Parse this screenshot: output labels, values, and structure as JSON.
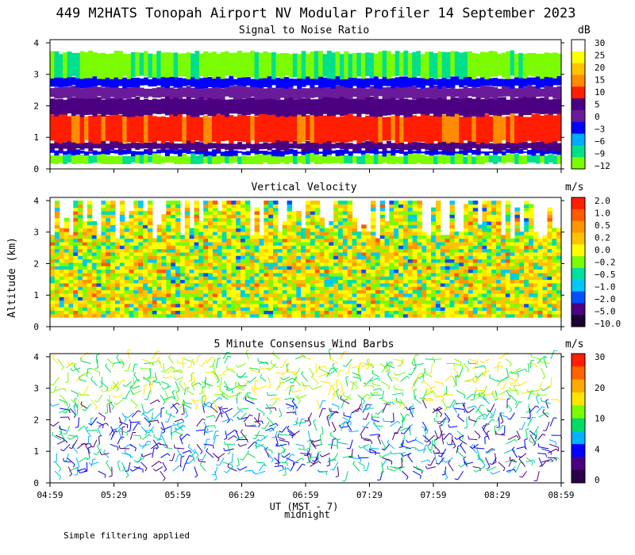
{
  "title": "449 M2HATS Tonopah Airport NV Modular Profiler 14 September 2023",
  "ylabel": "Altitude (km)",
  "xlabel": "UT (MST - 7)",
  "midnight_label": "midnight",
  "footnote": "Simple filtering applied",
  "colors": {
    "background": "#ffffff",
    "axis": "#000000"
  },
  "chart_data": [
    {
      "type": "heatmap",
      "title": "Signal to Noise Ratio",
      "xlabel": "UT (MST - 7)",
      "ylabel": "Altitude (km)",
      "x_ticks": [
        "04:59",
        "05:29",
        "05:59",
        "06:29",
        "06:59",
        "07:29",
        "07:59",
        "08:29",
        "08:59"
      ],
      "y_ticks": [
        "0",
        "1",
        "2",
        "3",
        "4"
      ],
      "ylim": [
        0,
        4.1
      ],
      "colorbar": {
        "unit": "dB",
        "ticks": [
          "30",
          "25",
          "20",
          "15",
          "10",
          "5",
          "0",
          "−3",
          "−6",
          "−9",
          "−12"
        ],
        "colors": [
          "#ffffff",
          "#ffff00",
          "#ffc400",
          "#ff8c00",
          "#ff1e00",
          "#4b0082",
          "#6a1b9a",
          "#0000ff",
          "#00aaff",
          "#00e08c",
          "#7cfc00"
        ]
      },
      "layers": [
        {
          "bottom": 0.15,
          "top": 0.45,
          "level": -9
        },
        {
          "bottom": 0.45,
          "top": 0.6,
          "level": -3
        },
        {
          "bottom": 0.6,
          "top": 0.85,
          "level": 5
        },
        {
          "bottom": 0.85,
          "top": 1.7,
          "level": 10
        },
        {
          "bottom": 1.7,
          "top": 2.25,
          "level": 5
        },
        {
          "bottom": 2.25,
          "top": 2.6,
          "level": 0
        },
        {
          "bottom": 2.6,
          "top": 2.9,
          "level": -3
        },
        {
          "bottom": 2.9,
          "top": 3.7,
          "level": -9
        },
        {
          "bottom": 3.7,
          "top": 4.0,
          "level": 30
        }
      ]
    },
    {
      "type": "heatmap",
      "title": "Vertical Velocity",
      "xlabel": "UT (MST - 7)",
      "ylabel": "Altitude (km)",
      "x_ticks": [
        "04:59",
        "05:29",
        "05:59",
        "06:29",
        "06:59",
        "07:29",
        "07:59",
        "08:29",
        "08:59"
      ],
      "y_ticks": [
        "0",
        "1",
        "2",
        "3",
        "4"
      ],
      "ylim": [
        0,
        4.1
      ],
      "colorbar": {
        "unit": "m/s",
        "ticks": [
          "2.0",
          "1.0",
          "0.5",
          "0.2",
          "0.0",
          "−0.2",
          "−0.5",
          "−1.0",
          "−2.0",
          "−5.0",
          "−10.0"
        ],
        "colors": [
          "#ff1e00",
          "#ff5a00",
          "#ff9600",
          "#ffc400",
          "#ffff00",
          "#7cfc00",
          "#00e0a0",
          "#00c8ff",
          "#0050ff",
          "#4b0082",
          "#1a0033"
        ]
      },
      "data_range_km": [
        0.3,
        4.0
      ],
      "dominant_range": [
        -0.5,
        0.5
      ]
    },
    {
      "type": "scatter",
      "title": "5 Minute Consensus Wind Barbs",
      "xlabel": "UT (MST - 7)",
      "ylabel": "Altitude (km)",
      "x_ticks": [
        "04:59",
        "05:29",
        "05:59",
        "06:29",
        "06:59",
        "07:29",
        "07:59",
        "08:29",
        "08:59"
      ],
      "y_ticks": [
        "0",
        "1",
        "2",
        "3",
        "4"
      ],
      "ylim": [
        0,
        4.1
      ],
      "colorbar": {
        "unit": "m/s",
        "ticks": [
          "30",
          "20",
          "10",
          "4",
          "0"
        ],
        "colors": [
          "#ff1e00",
          "#ff6400",
          "#ffaa00",
          "#ffe600",
          "#7cfc00",
          "#00dc64",
          "#00b4ff",
          "#0000ff",
          "#4b0082",
          "#2a004a"
        ]
      },
      "time_range": [
        "04:59",
        "08:59"
      ],
      "altitude_range_km": [
        0.3,
        4.0
      ]
    }
  ]
}
